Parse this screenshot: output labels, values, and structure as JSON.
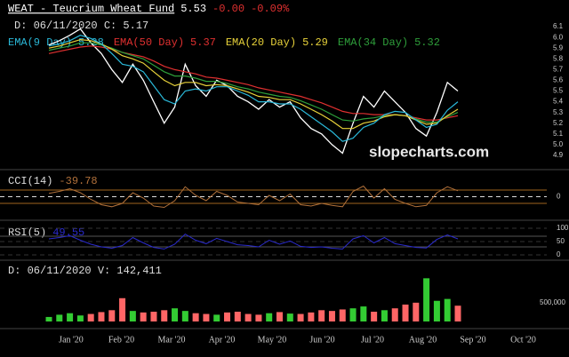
{
  "chart_data": [
    {
      "type": "line",
      "title": "WEAT - Teucrium Wheat Fund",
      "last": 5.53,
      "change": "-0.00",
      "change_pct": "-0.09%",
      "cursor_text": "D: 06/11/2020 C: 5.17",
      "watermark": "slopecharts.com",
      "ylim": [
        4.8,
        6.2
      ],
      "yticks": [
        6.1,
        {
          "value": 6,
          "label": "6.0"
        },
        5.9,
        5.8,
        5.7,
        5.6,
        5.5,
        5.4,
        5.3,
        5.2,
        5.1,
        {
          "value": 5,
          "label": "5.0"
        },
        4.9
      ],
      "series": [
        {
          "name": "Close",
          "color": "#ffffff",
          "values": [
            5.93,
            5.97,
            6.02,
            6.08,
            5.95,
            5.85,
            5.7,
            5.58,
            5.75,
            5.6,
            5.4,
            5.2,
            5.35,
            5.75,
            5.55,
            5.45,
            5.6,
            5.55,
            5.45,
            5.4,
            5.33,
            5.42,
            5.35,
            5.4,
            5.25,
            5.15,
            5.1,
            5.0,
            4.92,
            5.2,
            5.45,
            5.35,
            5.5,
            5.4,
            5.3,
            5.15,
            5.08,
            5.3,
            5.58,
            5.5
          ]
        },
        {
          "name": "EMA(50 Day)",
          "legend_value": 5.37,
          "color": "#e03030",
          "values": [
            5.85,
            5.87,
            5.89,
            5.91,
            5.92,
            5.91,
            5.89,
            5.86,
            5.84,
            5.82,
            5.78,
            5.73,
            5.7,
            5.68,
            5.66,
            5.63,
            5.62,
            5.6,
            5.58,
            5.56,
            5.53,
            5.51,
            5.49,
            5.47,
            5.45,
            5.42,
            5.39,
            5.35,
            5.31,
            5.29,
            5.29,
            5.28,
            5.28,
            5.28,
            5.27,
            5.25,
            5.23,
            5.23,
            5.25,
            5.27
          ]
        },
        {
          "name": "EMA(34 Day)",
          "legend_value": 5.32,
          "color": "#2e9e3a",
          "values": [
            5.88,
            5.9,
            5.92,
            5.95,
            5.95,
            5.93,
            5.9,
            5.86,
            5.83,
            5.8,
            5.74,
            5.68,
            5.64,
            5.64,
            5.62,
            5.59,
            5.59,
            5.57,
            5.54,
            5.52,
            5.49,
            5.47,
            5.45,
            5.44,
            5.41,
            5.37,
            5.33,
            5.28,
            5.23,
            5.22,
            5.24,
            5.25,
            5.27,
            5.28,
            5.27,
            5.24,
            5.21,
            5.21,
            5.26,
            5.3
          ]
        },
        {
          "name": "EMA(20 Day)",
          "legend_value": 5.29,
          "color": "#e8d23a",
          "values": [
            5.9,
            5.92,
            5.95,
            5.98,
            5.97,
            5.94,
            5.89,
            5.83,
            5.8,
            5.76,
            5.68,
            5.6,
            5.55,
            5.58,
            5.58,
            5.55,
            5.56,
            5.55,
            5.52,
            5.49,
            5.45,
            5.44,
            5.42,
            5.42,
            5.38,
            5.33,
            5.28,
            5.22,
            5.15,
            5.15,
            5.2,
            5.22,
            5.26,
            5.28,
            5.27,
            5.23,
            5.19,
            5.2,
            5.27,
            5.33
          ]
        },
        {
          "name": "EMA(9 Day)",
          "legend_value": 5.28,
          "color": "#2ab8d8",
          "values": [
            5.92,
            5.94,
            5.97,
            6.02,
            5.99,
            5.94,
            5.85,
            5.75,
            5.73,
            5.68,
            5.55,
            5.42,
            5.38,
            5.5,
            5.52,
            5.5,
            5.54,
            5.54,
            5.5,
            5.46,
            5.4,
            5.4,
            5.38,
            5.38,
            5.33,
            5.26,
            5.19,
            5.12,
            5.03,
            5.06,
            5.16,
            5.2,
            5.28,
            5.31,
            5.3,
            5.23,
            5.16,
            5.19,
            5.32,
            5.4
          ]
        }
      ],
      "legend_order": [
        4,
        1,
        3,
        2
      ]
    },
    {
      "type": "line",
      "title": "CCI(14)",
      "last": -39.78,
      "color": "#b0703a",
      "band_color": "#a0641e",
      "ylim": [
        -300,
        300
      ],
      "yticks": [
        0
      ],
      "bands": [
        -100,
        100
      ],
      "values": [
        50,
        80,
        120,
        60,
        -40,
        -120,
        -150,
        -100,
        60,
        -20,
        -140,
        -160,
        -60,
        150,
        20,
        -60,
        80,
        20,
        -80,
        -100,
        -120,
        20,
        -60,
        40,
        -120,
        -140,
        -100,
        -130,
        -150,
        80,
        160,
        -20,
        120,
        -40,
        -100,
        -150,
        -130,
        60,
        150,
        90
      ]
    },
    {
      "type": "line",
      "title": "RSI(5)",
      "last": 49.55,
      "color": "#2a2acc",
      "band_color": "#555555",
      "ylim": [
        0,
        100
      ],
      "yticks": [
        100,
        50,
        0
      ],
      "bands": [
        30,
        70
      ],
      "values": [
        60,
        65,
        72,
        55,
        40,
        30,
        25,
        35,
        65,
        45,
        28,
        22,
        40,
        78,
        55,
        42,
        62,
        50,
        38,
        35,
        30,
        55,
        40,
        52,
        32,
        28,
        30,
        25,
        22,
        60,
        72,
        45,
        65,
        42,
        35,
        28,
        26,
        58,
        75,
        60
      ]
    },
    {
      "type": "bar",
      "cursor_text": "D: 06/11/2020 V: 142,411",
      "ylim": [
        0,
        1300000
      ],
      "yticks": [
        {
          "value": 500000,
          "label": "500,000"
        }
      ],
      "values": [
        120000,
        180000,
        220000,
        160000,
        200000,
        250000,
        300000,
        620000,
        280000,
        240000,
        260000,
        300000,
        350000,
        280000,
        220000,
        200000,
        180000,
        240000,
        260000,
        200000,
        180000,
        220000,
        250000,
        210000,
        200000,
        240000,
        300000,
        280000,
        320000,
        350000,
        400000,
        260000,
        300000,
        350000,
        450000,
        500000,
        1150000,
        550000,
        600000,
        420000
      ],
      "colors": [
        "#33cc33",
        "#33cc33",
        "#33cc33",
        "#33cc33",
        "#ff6666",
        "#ff6666",
        "#ff6666",
        "#ff6666",
        "#33cc33",
        "#ff6666",
        "#ff6666",
        "#ff6666",
        "#33cc33",
        "#33cc33",
        "#ff6666",
        "#ff6666",
        "#33cc33",
        "#ff6666",
        "#ff6666",
        "#ff6666",
        "#ff6666",
        "#33cc33",
        "#ff6666",
        "#33cc33",
        "#ff6666",
        "#ff6666",
        "#ff6666",
        "#ff6666",
        "#ff6666",
        "#33cc33",
        "#33cc33",
        "#ff6666",
        "#33cc33",
        "#ff6666",
        "#ff6666",
        "#ff6666",
        "#33cc33",
        "#33cc33",
        "#33cc33",
        "#ff6666"
      ],
      "xticks": [
        "Jan '20",
        "Feb '20",
        "Mar '20",
        "Apr '20",
        "May '20",
        "Jun '20",
        "Jul '20",
        "Aug '20",
        "Sep '20",
        "Oct '20"
      ]
    }
  ]
}
